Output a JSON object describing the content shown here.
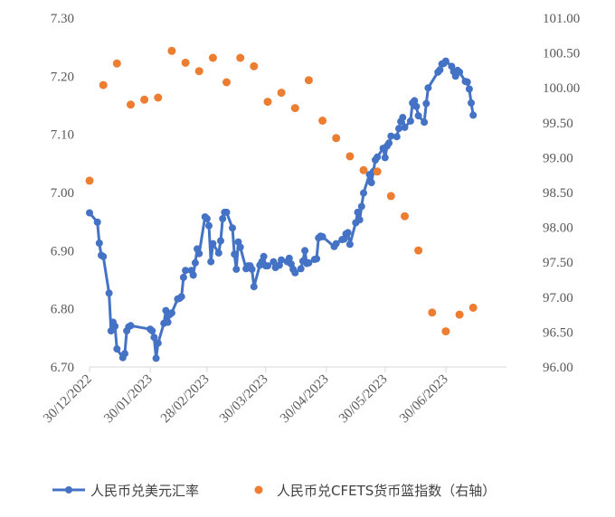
{
  "chart_data": {
    "type": "line",
    "title": "",
    "xlabel": "",
    "ylabel": "",
    "x_ticks": [
      "30/12/2022",
      "30/01/2023",
      "28/02/2023",
      "30/03/2023",
      "30/04/2023",
      "30/05/2023",
      "30/06/2023"
    ],
    "y_left_ticks": [
      "6.70",
      "6.80",
      "6.90",
      "7.00",
      "7.10",
      "7.20",
      "7.30"
    ],
    "y_right_ticks": [
      "96.00",
      "96.50",
      "97.00",
      "97.50",
      "98.00",
      "98.50",
      "99.00",
      "99.50",
      "100.00",
      "100.50",
      "101.00"
    ],
    "ylim_left": [
      6.7,
      7.3
    ],
    "ylim_right": [
      96.0,
      101.0
    ],
    "xlim": [
      "2022-12-30",
      "2023-07-31"
    ],
    "grid": false,
    "legend_position": "bottom",
    "colors": {
      "usd_rate": "#4472C4",
      "cfets_index": "#ED7D31",
      "axis": "#D9D9D9",
      "text": "#595959"
    },
    "series": [
      {
        "name": "人民币兑美元汇率",
        "axis": "left",
        "style": "line-with-markers",
        "points": [
          [
            "2022-12-30",
            6.965
          ],
          [
            "2023-01-03",
            6.949
          ],
          [
            "2023-01-04",
            6.913
          ],
          [
            "2023-01-05",
            6.892
          ],
          [
            "2023-01-06",
            6.89
          ],
          [
            "2023-01-09",
            6.827
          ],
          [
            "2023-01-10",
            6.762
          ],
          [
            "2023-01-11",
            6.777
          ],
          [
            "2023-01-12",
            6.77
          ],
          [
            "2023-01-13",
            6.731
          ],
          [
            "2023-01-16",
            6.716
          ],
          [
            "2023-01-17",
            6.723
          ],
          [
            "2023-01-18",
            6.762
          ],
          [
            "2023-01-19",
            6.769
          ],
          [
            "2023-01-20",
            6.771
          ],
          [
            "2023-01-30",
            6.765
          ],
          [
            "2023-01-31",
            6.762
          ],
          [
            "2023-02-01",
            6.751
          ],
          [
            "2023-02-02",
            6.715
          ],
          [
            "2023-02-03",
            6.741
          ],
          [
            "2023-02-06",
            6.775
          ],
          [
            "2023-02-07",
            6.797
          ],
          [
            "2023-02-08",
            6.777
          ],
          [
            "2023-02-09",
            6.79
          ],
          [
            "2023-02-10",
            6.793
          ],
          [
            "2023-02-13",
            6.817
          ],
          [
            "2023-02-14",
            6.818
          ],
          [
            "2023-02-15",
            6.821
          ],
          [
            "2023-02-16",
            6.854
          ],
          [
            "2023-02-17",
            6.866
          ],
          [
            "2023-02-20",
            6.866
          ],
          [
            "2023-02-21",
            6.858
          ],
          [
            "2023-02-22",
            6.879
          ],
          [
            "2023-02-23",
            6.903
          ],
          [
            "2023-02-24",
            6.895
          ],
          [
            "2023-02-27",
            6.958
          ],
          [
            "2023-02-28",
            6.955
          ],
          [
            "2023-03-01",
            6.943
          ],
          [
            "2023-03-02",
            6.881
          ],
          [
            "2023-03-03",
            6.912
          ],
          [
            "2023-03-06",
            6.896
          ],
          [
            "2023-03-07",
            6.917
          ],
          [
            "2023-03-08",
            6.955
          ],
          [
            "2023-03-09",
            6.966
          ],
          [
            "2023-03-10",
            6.966
          ],
          [
            "2023-03-13",
            6.939
          ],
          [
            "2023-03-14",
            6.894
          ],
          [
            "2023-03-15",
            6.868
          ],
          [
            "2023-03-16",
            6.915
          ],
          [
            "2023-03-17",
            6.906
          ],
          [
            "2023-03-20",
            6.869
          ],
          [
            "2023-03-21",
            6.874
          ],
          [
            "2023-03-22",
            6.874
          ],
          [
            "2023-03-23",
            6.868
          ],
          [
            "2023-03-24",
            6.838
          ],
          [
            "2023-03-27",
            6.875
          ],
          [
            "2023-03-28",
            6.881
          ],
          [
            "2023-03-29",
            6.89
          ],
          [
            "2023-03-30",
            6.874
          ],
          [
            "2023-03-31",
            6.874
          ],
          [
            "2023-04-03",
            6.881
          ],
          [
            "2023-04-04",
            6.871
          ],
          [
            "2023-04-06",
            6.875
          ],
          [
            "2023-04-07",
            6.884
          ],
          [
            "2023-04-10",
            6.881
          ],
          [
            "2023-04-11",
            6.887
          ],
          [
            "2023-04-12",
            6.877
          ],
          [
            "2023-04-13",
            6.868
          ],
          [
            "2023-04-14",
            6.862
          ],
          [
            "2023-04-17",
            6.869
          ],
          [
            "2023-04-18",
            6.882
          ],
          [
            "2023-04-19",
            6.9
          ],
          [
            "2023-04-20",
            6.878
          ],
          [
            "2023-04-21",
            6.879
          ],
          [
            "2023-04-24",
            6.885
          ],
          [
            "2023-04-25",
            6.886
          ],
          [
            "2023-04-26",
            6.922
          ],
          [
            "2023-04-27",
            6.925
          ],
          [
            "2023-04-28",
            6.924
          ],
          [
            "2023-05-04",
            6.907
          ],
          [
            "2023-05-05",
            6.912
          ],
          [
            "2023-05-08",
            6.919
          ],
          [
            "2023-05-09",
            6.92
          ],
          [
            "2023-05-10",
            6.929
          ],
          [
            "2023-05-11",
            6.931
          ],
          [
            "2023-05-12",
            6.911
          ],
          [
            "2023-05-15",
            6.948
          ],
          [
            "2023-05-16",
            6.966
          ],
          [
            "2023-05-17",
            6.953
          ],
          [
            "2023-05-18",
            6.976
          ],
          [
            "2023-05-19",
            6.999
          ],
          [
            "2023-05-22",
            7.031
          ],
          [
            "2023-05-23",
            7.017
          ],
          [
            "2023-05-24",
            7.036
          ],
          [
            "2023-05-25",
            7.056
          ],
          [
            "2023-05-26",
            7.061
          ],
          [
            "2023-05-29",
            7.076
          ],
          [
            "2023-05-30",
            7.06
          ],
          [
            "2023-05-31",
            7.08
          ],
          [
            "2023-06-01",
            7.085
          ],
          [
            "2023-06-02",
            7.097
          ],
          [
            "2023-06-05",
            7.096
          ],
          [
            "2023-06-06",
            7.11
          ],
          [
            "2023-06-07",
            7.122
          ],
          [
            "2023-06-08",
            7.129
          ],
          [
            "2023-06-09",
            7.112
          ],
          [
            "2023-06-12",
            7.123
          ],
          [
            "2023-06-13",
            7.154
          ],
          [
            "2023-06-14",
            7.158
          ],
          [
            "2023-06-15",
            7.148
          ],
          [
            "2023-06-16",
            7.132
          ],
          [
            "2023-06-19",
            7.121
          ],
          [
            "2023-06-20",
            7.153
          ],
          [
            "2023-06-21",
            7.18
          ],
          [
            "2023-06-26",
            7.207
          ],
          [
            "2023-06-27",
            7.211
          ],
          [
            "2023-06-28",
            7.221
          ],
          [
            "2023-06-29",
            7.222
          ],
          [
            "2023-06-30",
            7.226
          ],
          [
            "2023-07-03",
            7.217
          ],
          [
            "2023-07-04",
            7.208
          ],
          [
            "2023-07-05",
            7.2
          ],
          [
            "2023-07-06",
            7.21
          ],
          [
            "2023-07-07",
            7.207
          ],
          [
            "2023-07-10",
            7.191
          ],
          [
            "2023-07-11",
            7.19
          ],
          [
            "2023-07-12",
            7.178
          ],
          [
            "2023-07-13",
            7.154
          ],
          [
            "2023-07-14",
            7.133
          ]
        ]
      },
      {
        "name": "人民币兑CFETS货币篮指数（右轴）",
        "axis": "right",
        "style": "markers",
        "points": [
          [
            "2022-12-30",
            98.67
          ],
          [
            "2023-01-06",
            100.04
          ],
          [
            "2023-01-13",
            100.35
          ],
          [
            "2023-01-20",
            99.76
          ],
          [
            "2023-01-27",
            99.83
          ],
          [
            "2023-02-03",
            99.86
          ],
          [
            "2023-02-10",
            100.53
          ],
          [
            "2023-02-17",
            100.36
          ],
          [
            "2023-02-24",
            100.24
          ],
          [
            "2023-03-03",
            100.43
          ],
          [
            "2023-03-10",
            100.08
          ],
          [
            "2023-03-17",
            100.43
          ],
          [
            "2023-03-24",
            100.31
          ],
          [
            "2023-03-31",
            99.8
          ],
          [
            "2023-04-07",
            99.93
          ],
          [
            "2023-04-14",
            99.71
          ],
          [
            "2023-04-21",
            100.11
          ],
          [
            "2023-04-28",
            99.53
          ],
          [
            "2023-05-05",
            99.28
          ],
          [
            "2023-05-12",
            99.02
          ],
          [
            "2023-05-19",
            98.82
          ],
          [
            "2023-05-26",
            98.8
          ],
          [
            "2023-06-02",
            98.45
          ],
          [
            "2023-06-09",
            98.16
          ],
          [
            "2023-06-16",
            97.67
          ],
          [
            "2023-06-23",
            96.78
          ],
          [
            "2023-06-30",
            96.51
          ],
          [
            "2023-07-07",
            96.75
          ],
          [
            "2023-07-14",
            96.85
          ]
        ]
      }
    ]
  },
  "legend": {
    "items": [
      {
        "label": "人民币兑美元汇率",
        "color": "#4472C4",
        "kind": "line-marker"
      },
      {
        "label": "人民币兑CFETS货币篮指数（右轴）",
        "color": "#ED7D31",
        "kind": "marker"
      }
    ]
  }
}
